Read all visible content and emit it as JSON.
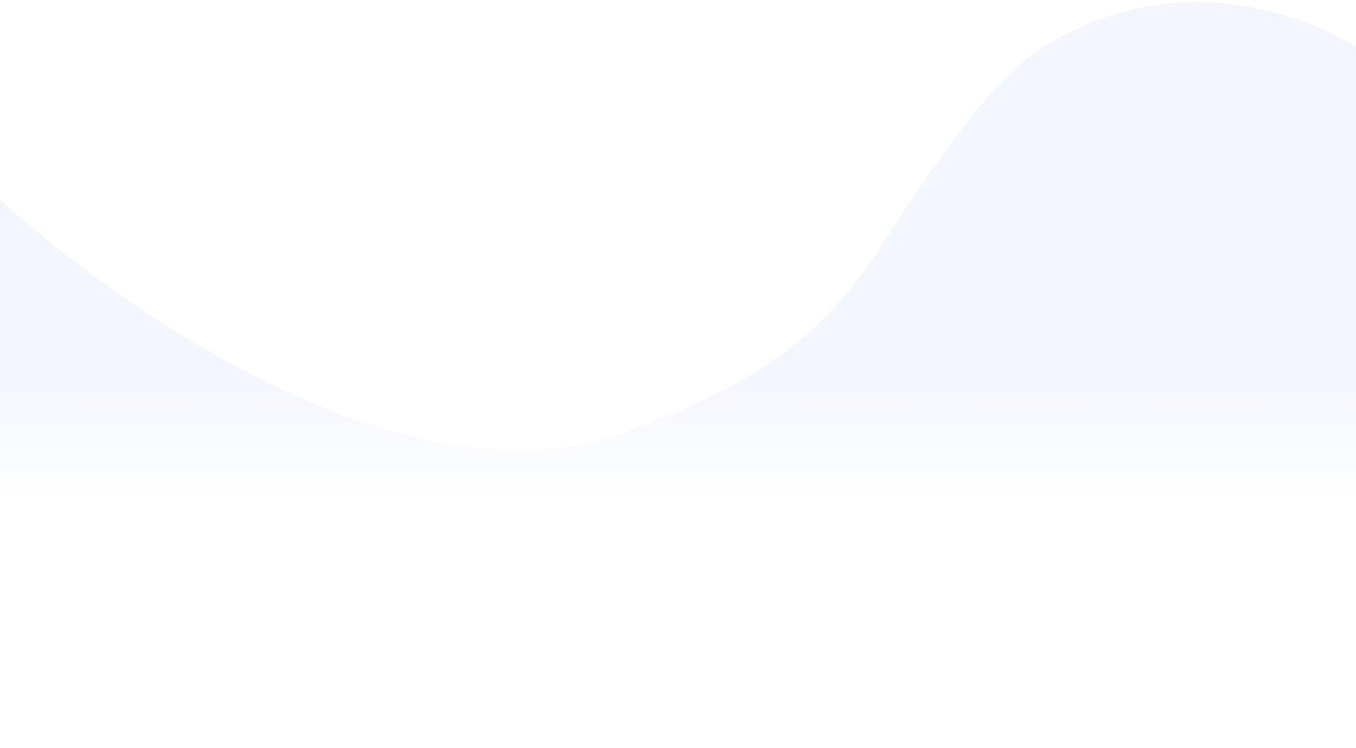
{
  "page": {
    "background_color": "#ffffff",
    "wave_color": "#f3f6fd",
    "fade_to_color": "#ffffff"
  }
}
